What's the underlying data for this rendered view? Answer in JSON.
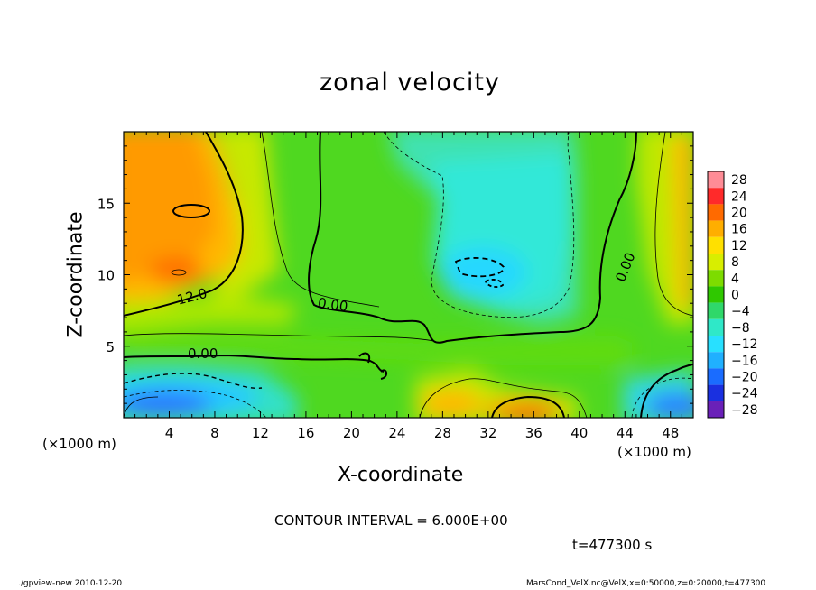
{
  "chart_data": {
    "type": "heatmap",
    "title": "zonal velocity",
    "xlabel": "X-coordinate",
    "ylabel": "Z-coordinate",
    "x_unit": "(×1000 m)",
    "xlim": [
      0,
      50
    ],
    "ylim": [
      0,
      20
    ],
    "x_ticks": [
      "4",
      "8",
      "12",
      "16",
      "20",
      "24",
      "28",
      "32",
      "36",
      "40",
      "44",
      "48"
    ],
    "y_ticks": [
      "5",
      "10",
      "15"
    ],
    "colorbar_labels": [
      "28",
      "24",
      "20",
      "16",
      "12",
      "8",
      "4",
      "0",
      "−4",
      "−8",
      "−12",
      "−16",
      "−20",
      "−24",
      "−28"
    ],
    "colors": [
      "#ff8c96",
      "#ff2a2a",
      "#ff6a00",
      "#ffae00",
      "#ffe000",
      "#d8ee00",
      "#7ddc00",
      "#2fc800",
      "#2fd86a",
      "#2fe8c8",
      "#28e0ff",
      "#20b0ff",
      "#1a6cff",
      "#1a30e0",
      "#6a20b8"
    ],
    "contour_labels": [
      "12.0",
      "0.00",
      "0.00",
      "0.00"
    ],
    "contour_interval_text": "CONTOUR INTERVAL = 6.000E+00",
    "time_text": "t=477300 s"
  },
  "footer": {
    "left": "./gpview-new   2010-12-20",
    "right": "MarsCond_VelX.nc@VelX,x=0:50000,z=0:20000,t=477300"
  }
}
